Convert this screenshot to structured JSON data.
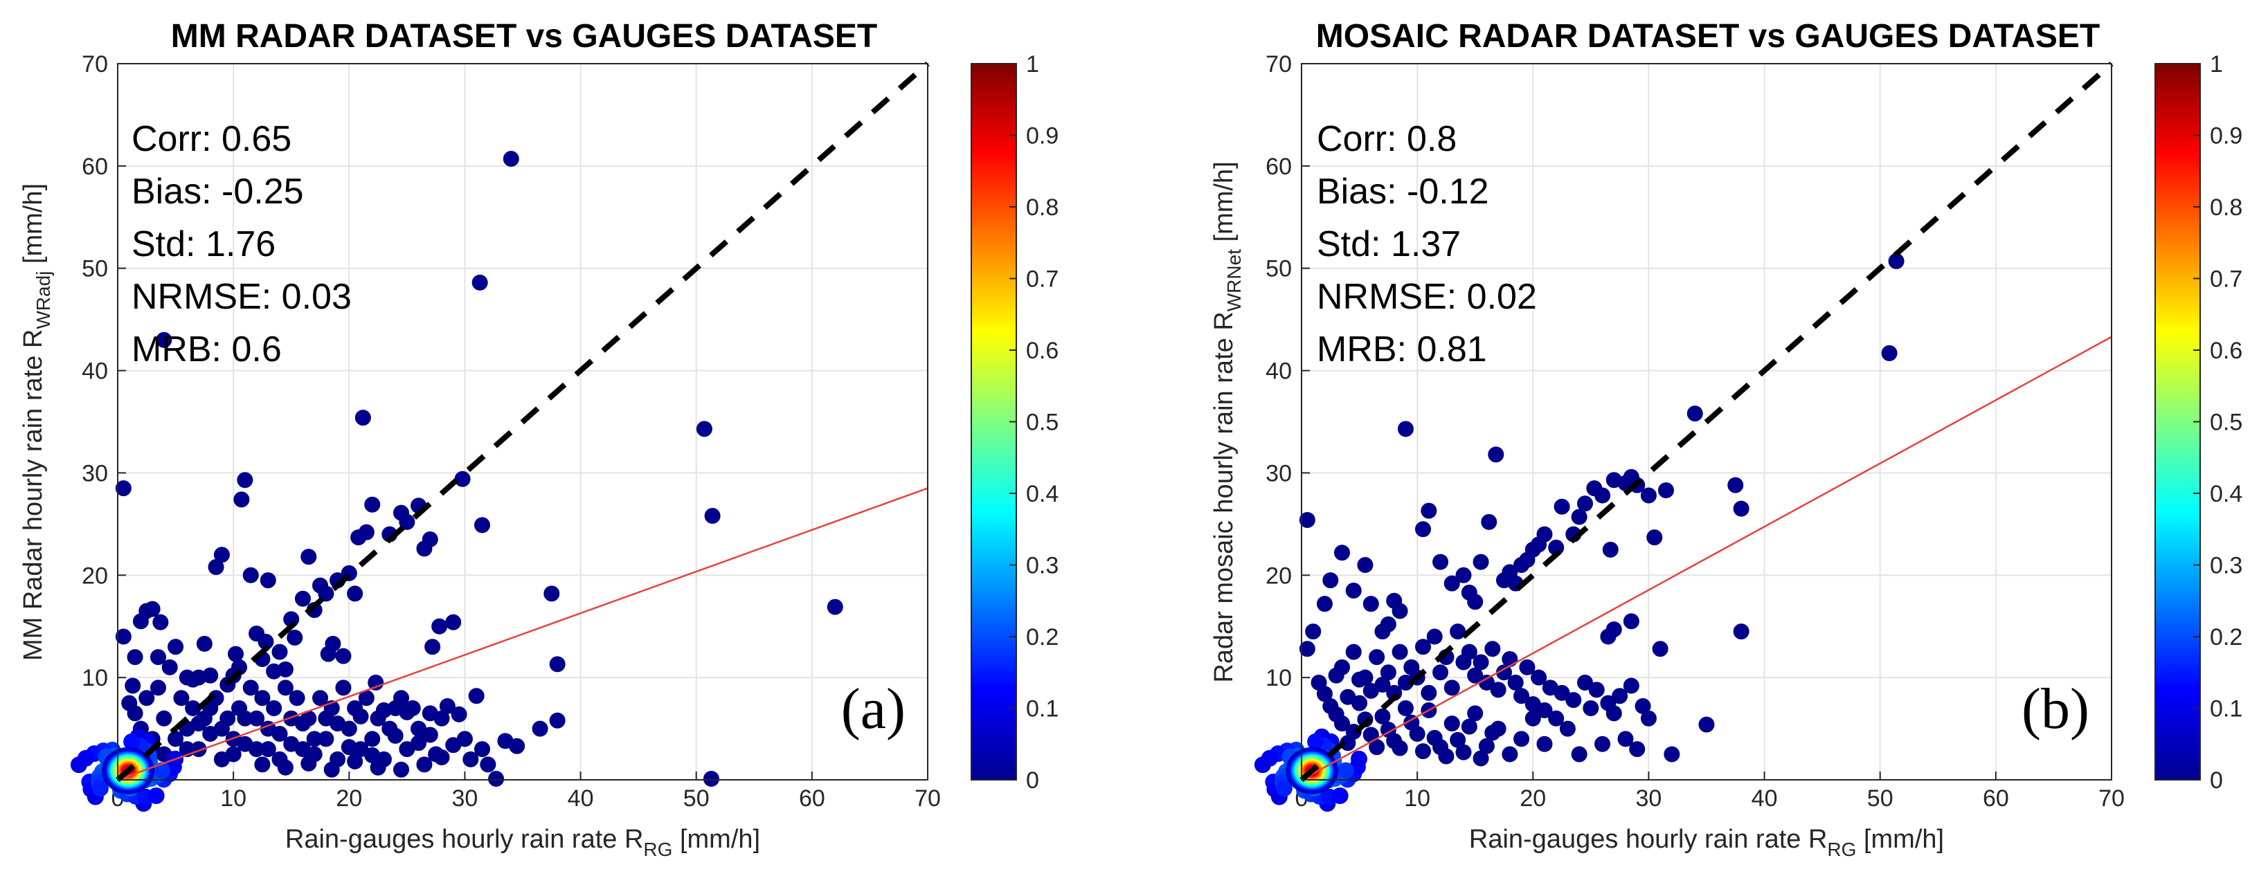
{
  "chart_data": [
    {
      "type": "scatter",
      "title": "MM RADAR DATASET vs GAUGES DATASET",
      "xlabel": "Rain-gauges hourly rain rate R",
      "xlabel_sub": "RG",
      "xlabel_unit": " [mm/h]",
      "ylabel": "MM Radar hourly rain rate R",
      "ylabel_sub": "WRadj",
      "ylabel_unit": " [mm/h]",
      "xlim": [
        0,
        70
      ],
      "ylim": [
        0,
        70
      ],
      "xticks": [
        "0",
        "10",
        "20",
        "30",
        "40",
        "50",
        "60",
        "70"
      ],
      "yticks": [
        "0",
        "10",
        "20",
        "30",
        "40",
        "50",
        "60",
        "70"
      ],
      "grid": true,
      "panel_label": "(a)",
      "stats": [
        "Corr: 0.65",
        "Bias: -0.25",
        "Std: 1.76",
        "NRMSE: 0.03",
        "MRB: 0.6"
      ],
      "one_to_one_line": {
        "from": [
          0,
          0
        ],
        "to": [
          70,
          70
        ],
        "style": "dashed",
        "color": "#000000"
      },
      "fit_line": {
        "from": [
          0,
          0
        ],
        "to": [
          70,
          28.5
        ],
        "color": "#e8413d"
      },
      "colorbar": {
        "min": 0,
        "max": 1,
        "ticks": [
          "0",
          "0.1",
          "0.2",
          "0.3",
          "0.4",
          "0.5",
          "0.6",
          "0.7",
          "0.8",
          "0.9",
          "1"
        ],
        "colormap": "jet"
      },
      "points": [
        [
          0.5,
          28.5
        ],
        [
          0.5,
          14
        ],
        [
          1.3,
          9.2
        ],
        [
          1.5,
          12
        ],
        [
          2,
          15.5
        ],
        [
          2.5,
          16.5
        ],
        [
          3,
          16.7
        ],
        [
          3.5,
          12
        ],
        [
          3.7,
          15.4
        ],
        [
          4,
          43
        ],
        [
          5,
          13
        ],
        [
          6,
          10
        ],
        [
          6.5,
          9.8
        ],
        [
          7,
          10
        ],
        [
          7.5,
          13.3
        ],
        [
          8,
          10.2
        ],
        [
          8.5,
          20.8
        ],
        [
          9,
          22
        ],
        [
          9.5,
          9.3
        ],
        [
          10,
          10.2
        ],
        [
          10.2,
          12.3
        ],
        [
          10.5,
          11
        ],
        [
          10.7,
          27.4
        ],
        [
          11,
          29.3
        ],
        [
          11.5,
          20
        ],
        [
          12,
          14.3
        ],
        [
          12.5,
          11.8
        ],
        [
          12.8,
          13.5
        ],
        [
          13,
          19.5
        ],
        [
          13.5,
          10.6
        ],
        [
          14,
          12.5
        ],
        [
          14.5,
          10.8
        ],
        [
          15,
          15.7
        ],
        [
          15.3,
          13.9
        ],
        [
          16,
          17.7
        ],
        [
          16.5,
          21.8
        ],
        [
          17,
          16.6
        ],
        [
          17.5,
          19
        ],
        [
          18,
          18.2
        ],
        [
          18.2,
          12.3
        ],
        [
          18.6,
          13.3
        ],
        [
          19,
          19.5
        ],
        [
          19.5,
          12.1
        ],
        [
          20,
          20.2
        ],
        [
          20.5,
          18.2
        ],
        [
          20.8,
          23.7
        ],
        [
          21.2,
          35.4
        ],
        [
          21.5,
          24.2
        ],
        [
          22,
          26.9
        ],
        [
          22.3,
          9.5
        ],
        [
          23.5,
          24
        ],
        [
          24.5,
          26.1
        ],
        [
          25,
          25.2
        ],
        [
          26,
          26.8
        ],
        [
          26.5,
          22.6
        ],
        [
          27,
          23.5
        ],
        [
          27.2,
          13
        ],
        [
          27.8,
          15
        ],
        [
          29,
          15.4
        ],
        [
          29.8,
          29.4
        ],
        [
          31.3,
          48.6
        ],
        [
          31.5,
          24.9
        ],
        [
          34,
          60.7
        ],
        [
          37.5,
          18.2
        ],
        [
          38,
          11.3
        ],
        [
          38,
          5.8
        ],
        [
          50.7,
          34.3
        ],
        [
          51.4,
          25.8
        ],
        [
          51.3,
          0.1
        ],
        [
          62,
          16.9
        ],
        [
          32.7,
          0.1
        ],
        [
          33.5,
          3.8
        ],
        [
          34.5,
          3.3
        ],
        [
          36.5,
          5
        ],
        [
          30,
          4
        ],
        [
          28,
          6
        ],
        [
          26,
          5
        ],
        [
          25,
          3
        ],
        [
          24,
          7
        ],
        [
          23,
          2
        ],
        [
          22,
          4
        ],
        [
          21,
          3
        ],
        [
          20,
          5
        ],
        [
          19,
          2
        ],
        [
          18,
          6
        ],
        [
          17,
          4
        ],
        [
          16,
          3
        ],
        [
          15,
          6
        ],
        [
          14,
          2
        ],
        [
          13,
          5
        ],
        [
          12,
          3
        ],
        [
          11,
          6
        ],
        [
          10,
          4
        ],
        [
          9,
          2
        ],
        [
          8,
          7
        ],
        [
          7,
          3
        ],
        [
          6,
          5
        ],
        [
          5,
          2
        ],
        [
          4,
          6
        ],
        [
          3,
          4
        ],
        [
          2.5,
          8
        ],
        [
          3.5,
          9
        ],
        [
          4.5,
          11
        ],
        [
          5.5,
          8
        ],
        [
          6.5,
          7
        ],
        [
          7.5,
          6
        ],
        [
          8.5,
          8
        ],
        [
          9.5,
          6
        ],
        [
          10.5,
          7
        ],
        [
          11.5,
          9
        ],
        [
          12.5,
          8
        ],
        [
          13.5,
          7
        ],
        [
          14.5,
          9
        ],
        [
          15.5,
          8
        ],
        [
          16.5,
          6
        ],
        [
          17.5,
          8
        ],
        [
          18.5,
          7
        ],
        [
          19.5,
          9
        ],
        [
          20.5,
          7
        ],
        [
          21.5,
          8
        ],
        [
          22.5,
          6
        ],
        [
          23.5,
          5
        ],
        [
          24.5,
          8
        ],
        [
          25.5,
          7
        ],
        [
          27,
          6.5
        ],
        [
          28.5,
          7.2
        ],
        [
          29.5,
          6.4
        ],
        [
          31,
          8.2
        ],
        [
          30.5,
          2
        ],
        [
          32,
          1.5
        ],
        [
          31.5,
          3
        ],
        [
          27.5,
          2.5
        ],
        [
          26.5,
          1.5
        ],
        [
          24.5,
          1
        ],
        [
          22.5,
          1.2
        ],
        [
          20.5,
          1.8
        ],
        [
          18.5,
          1
        ],
        [
          16.5,
          1.6
        ],
        [
          14.5,
          1.2
        ],
        [
          12.5,
          1.5
        ],
        [
          3,
          3
        ],
        [
          2,
          5
        ],
        [
          1.5,
          6.5
        ],
        [
          1,
          7.5
        ],
        [
          4,
          2.5
        ],
        [
          5,
          4
        ],
        [
          6,
          3
        ],
        [
          7,
          5.5
        ],
        [
          8,
          4.5
        ],
        [
          9,
          5
        ],
        [
          10,
          2.5
        ],
        [
          11,
          3.5
        ],
        [
          12,
          6
        ],
        [
          13,
          3
        ],
        [
          14,
          4.5
        ],
        [
          15,
          3.5
        ],
        [
          16,
          5.5
        ],
        [
          17,
          2.5
        ],
        [
          18,
          4
        ],
        [
          19,
          5.5
        ],
        [
          20,
          3.2
        ],
        [
          21,
          6.2
        ],
        [
          22,
          2.4
        ],
        [
          23,
          6.8
        ],
        [
          24,
          4.3
        ],
        [
          25,
          6.6
        ],
        [
          26,
          3.6
        ],
        [
          27,
          4.4
        ],
        [
          28,
          2.2
        ],
        [
          29,
          3.4
        ]
      ]
    },
    {
      "type": "scatter",
      "title": "MOSAIC RADAR DATASET vs GAUGES DATASET",
      "xlabel": "Rain-gauges hourly rain rate R",
      "xlabel_sub": "RG",
      "xlabel_unit": " [mm/h]",
      "ylabel": "Radar mosaic hourly rain rate R",
      "ylabel_sub": "WRNet",
      "ylabel_unit": " [mm/h]",
      "xlim": [
        0,
        70
      ],
      "ylim": [
        0,
        70
      ],
      "xticks": [
        "0",
        "10",
        "20",
        "30",
        "40",
        "50",
        "60",
        "70"
      ],
      "yticks": [
        "0",
        "10",
        "20",
        "30",
        "40",
        "50",
        "60",
        "70"
      ],
      "grid": true,
      "panel_label": "(b)",
      "stats": [
        "Corr: 0.8",
        "Bias: -0.12",
        "Std: 1.37",
        "NRMSE: 0.02",
        "MRB: 0.81"
      ],
      "one_to_one_line": {
        "from": [
          0,
          0
        ],
        "to": [
          70,
          70
        ],
        "style": "dashed",
        "color": "#000000"
      },
      "fit_line": {
        "from": [
          0,
          0
        ],
        "to": [
          70,
          43.3
        ],
        "color": "#e8413d"
      },
      "colorbar": {
        "min": 0,
        "max": 1,
        "ticks": [
          "0",
          "0.1",
          "0.2",
          "0.3",
          "0.4",
          "0.5",
          "0.6",
          "0.7",
          "0.8",
          "0.9",
          "1"
        ],
        "colormap": "jet"
      },
      "points": [
        [
          0.5,
          25.4
        ],
        [
          0.5,
          12.8
        ],
        [
          1,
          14.5
        ],
        [
          2,
          17.2
        ],
        [
          2.5,
          19.5
        ],
        [
          3.5,
          22.2
        ],
        [
          4.5,
          18.5
        ],
        [
          5.5,
          21
        ],
        [
          6,
          17.2
        ],
        [
          7,
          14.5
        ],
        [
          7.5,
          15.2
        ],
        [
          8,
          17.5
        ],
        [
          8.5,
          16.5
        ],
        [
          9,
          34.3
        ],
        [
          10.5,
          24.5
        ],
        [
          11,
          26.3
        ],
        [
          12,
          21.3
        ],
        [
          13,
          19.2
        ],
        [
          14,
          20
        ],
        [
          14.5,
          18.3
        ],
        [
          15,
          17.4
        ],
        [
          15.5,
          21.3
        ],
        [
          16.2,
          25.2
        ],
        [
          16.8,
          31.8
        ],
        [
          17.5,
          19.5
        ],
        [
          18,
          20.3
        ],
        [
          18.5,
          19.2
        ],
        [
          19,
          21
        ],
        [
          19.5,
          21.5
        ],
        [
          20,
          22.5
        ],
        [
          20.5,
          23
        ],
        [
          21,
          24
        ],
        [
          22,
          22.7
        ],
        [
          22.5,
          26.7
        ],
        [
          23.5,
          24
        ],
        [
          24,
          25.7
        ],
        [
          24.5,
          27
        ],
        [
          25.3,
          28.5
        ],
        [
          26,
          27.8
        ],
        [
          26.7,
          22.5
        ],
        [
          27,
          29.3
        ],
        [
          28,
          29
        ],
        [
          28.5,
          29.6
        ],
        [
          29,
          28.8
        ],
        [
          30,
          27.8
        ],
        [
          30.5,
          23.7
        ],
        [
          28.5,
          15.5
        ],
        [
          27,
          14.7
        ],
        [
          26.5,
          14
        ],
        [
          31,
          12.8
        ],
        [
          31.5,
          28.3
        ],
        [
          34,
          35.8
        ],
        [
          37.5,
          28.8
        ],
        [
          38,
          26.5
        ],
        [
          38,
          14.5
        ],
        [
          50.8,
          41.7
        ],
        [
          51.4,
          50.7
        ],
        [
          35,
          5.4
        ],
        [
          32,
          2.5
        ],
        [
          30,
          6
        ],
        [
          29,
          3
        ],
        [
          28,
          4
        ],
        [
          27,
          6.5
        ],
        [
          26,
          3.5
        ],
        [
          25,
          7
        ],
        [
          24,
          2.5
        ],
        [
          23,
          5
        ],
        [
          22,
          6
        ],
        [
          21,
          3.5
        ],
        [
          20,
          6
        ],
        [
          19,
          4
        ],
        [
          18,
          2.5
        ],
        [
          17,
          5
        ],
        [
          16,
          3.3
        ],
        [
          15,
          6.5
        ],
        [
          14,
          2.7
        ],
        [
          13,
          5.5
        ],
        [
          12,
          3.2
        ],
        [
          11,
          6.8
        ],
        [
          10,
          4.5
        ],
        [
          9,
          7
        ],
        [
          8,
          3.8
        ],
        [
          7,
          6.2
        ],
        [
          6,
          4.4
        ],
        [
          5,
          7.5
        ],
        [
          4,
          3.6
        ],
        [
          3,
          6.4
        ],
        [
          2,
          8.4
        ],
        [
          1.5,
          9.5
        ],
        [
          3.5,
          11
        ],
        [
          4.5,
          12.5
        ],
        [
          5.5,
          10
        ],
        [
          6.5,
          12
        ],
        [
          7.5,
          10.5
        ],
        [
          8.5,
          12.5
        ],
        [
          9.5,
          11
        ],
        [
          10.5,
          13
        ],
        [
          11.5,
          14
        ],
        [
          12.5,
          12
        ],
        [
          13.5,
          14.5
        ],
        [
          14.5,
          12.5
        ],
        [
          15.5,
          11.5
        ],
        [
          16.5,
          12.8
        ],
        [
          17.5,
          10.5
        ],
        [
          18.5,
          9.5
        ],
        [
          19.5,
          11
        ],
        [
          20.5,
          10
        ],
        [
          21.5,
          9
        ],
        [
          22.5,
          8.5
        ],
        [
          23.5,
          7.8
        ],
        [
          24.5,
          9.5
        ],
        [
          25.5,
          8.8
        ],
        [
          26.5,
          7.5
        ],
        [
          27.5,
          8.2
        ],
        [
          28.5,
          9.2
        ],
        [
          29.5,
          7.2
        ],
        [
          8,
          8.5
        ],
        [
          9,
          9.5
        ],
        [
          10,
          10
        ],
        [
          11,
          8.5
        ],
        [
          12,
          10.5
        ],
        [
          13,
          9
        ],
        [
          14,
          11.5
        ],
        [
          15,
          10.2
        ],
        [
          16,
          9.5
        ],
        [
          17,
          8.8
        ],
        [
          18,
          11.8
        ],
        [
          19,
          8.2
        ],
        [
          20,
          7.4
        ],
        [
          21,
          6.8
        ],
        [
          7,
          9.3
        ],
        [
          6,
          8.7
        ],
        [
          5,
          9.8
        ],
        [
          4,
          8.1
        ],
        [
          3,
          10.2
        ],
        [
          2.5,
          7.2
        ],
        [
          3.5,
          5.5
        ],
        [
          4.5,
          4.7
        ],
        [
          5.5,
          5.9
        ],
        [
          6.5,
          3.2
        ],
        [
          7.5,
          4.9
        ],
        [
          8.5,
          3.1
        ],
        [
          9.5,
          5.6
        ],
        [
          10.5,
          2.8
        ],
        [
          11.5,
          4.1
        ],
        [
          12.5,
          2.3
        ],
        [
          13.5,
          3.9
        ],
        [
          14.5,
          5.2
        ],
        [
          15.5,
          2.1
        ],
        [
          16.5,
          4.6
        ]
      ]
    }
  ]
}
